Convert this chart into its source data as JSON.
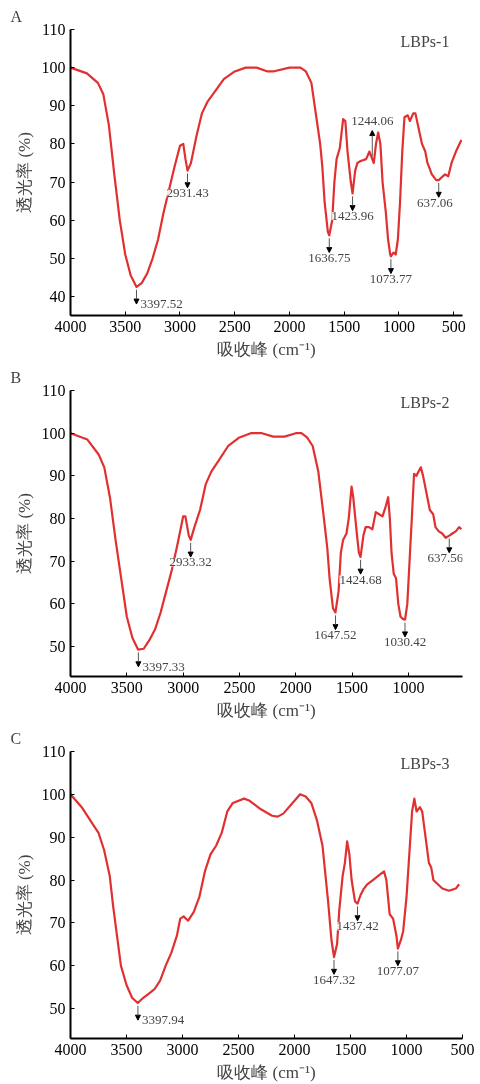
{
  "chart_data": [
    {
      "type": "line",
      "title": "A",
      "xlabel": "吸收峰 (cm⁻¹)",
      "ylabel": "透光率 (%)",
      "xlim": [
        4000,
        420
      ],
      "xticks": [
        4000,
        3500,
        3000,
        2500,
        2000,
        1500,
        1000,
        500
      ],
      "ylim": [
        35,
        110
      ],
      "yticks": [
        40,
        50,
        60,
        70,
        80,
        90,
        100,
        110
      ],
      "grid": false,
      "line_style": "solid",
      "marker": "none",
      "annotations": [
        "LBPs-1",
        {
          "text": "3397.52",
          "x": 3397.52,
          "y": 42.5
        },
        {
          "text": "2931.43",
          "x": 2931.43,
          "y": 73
        },
        {
          "text": "1636.75",
          "x": 1636.75,
          "y": 56
        },
        {
          "text": "1423.96",
          "x": 1423.96,
          "y": 67
        },
        {
          "text": "1244.06",
          "x": 1244.06,
          "y": 76
        },
        {
          "text": "1073.77",
          "x": 1073.77,
          "y": 50.5
        },
        {
          "text": "637.06",
          "x": 637.06,
          "y": 70.5
        }
      ],
      "series": [
        {
          "color": "#e03030",
          "x": [
            4000,
            3850,
            3750,
            3700,
            3650,
            3600,
            3550,
            3500,
            3450,
            3397,
            3350,
            3300,
            3250,
            3200,
            3150,
            3100,
            3050,
            3000,
            2970,
            2950,
            2931,
            2900,
            2850,
            2800,
            2750,
            2700,
            2600,
            2500,
            2400,
            2300,
            2200,
            2150,
            2000,
            1900,
            1850,
            1800,
            1750,
            1720,
            1700,
            1680,
            1650,
            1637,
            1610,
            1590,
            1570,
            1540,
            1510,
            1490,
            1470,
            1440,
            1424,
            1400,
            1380,
            1350,
            1300,
            1270,
            1244,
            1230,
            1210,
            1190,
            1170,
            1150,
            1120,
            1100,
            1080,
            1074,
            1050,
            1030,
            1010,
            990,
            970,
            950,
            920,
            900,
            870,
            850,
            820,
            790,
            760,
            740,
            700,
            660,
            637,
            600,
            580,
            550,
            520,
            480,
            430
          ],
          "values": [
            100,
            98.5,
            96,
            93,
            85,
            72,
            60,
            51,
            45.5,
            42.5,
            43.5,
            46,
            50,
            55,
            62,
            68,
            74,
            79.5,
            80,
            76,
            73,
            75,
            82,
            88,
            91,
            93,
            97,
            99,
            100,
            100,
            99,
            99,
            100,
            100,
            99,
            96,
            86,
            80,
            74,
            65,
            57,
            56,
            60,
            70,
            76,
            79,
            86.5,
            86,
            78,
            70,
            67,
            73,
            75,
            75.5,
            76,
            78,
            76,
            75,
            80,
            83,
            80,
            70,
            62,
            55,
            51,
            50.5,
            51.5,
            51,
            55,
            65,
            78,
            87,
            87.5,
            86,
            88,
            88,
            84,
            80,
            78,
            75,
            72,
            70.5,
            70.5,
            71.5,
            72,
            71.5,
            75,
            78,
            81
          ]
        }
      ]
    },
    {
      "type": "line",
      "title": "B",
      "xlabel": "吸收峰 (cm⁻¹)",
      "ylabel": "透光率 (%)",
      "xlim": [
        4000,
        520
      ],
      "xticks": [
        4000,
        3500,
        3000,
        2500,
        2000,
        1500,
        1000
      ],
      "ylim": [
        43,
        110
      ],
      "yticks": [
        50,
        60,
        70,
        80,
        90,
        100,
        110
      ],
      "grid": false,
      "line_style": "solid",
      "marker": "none",
      "annotations": [
        "LBPs-2",
        {
          "text": "3397.33",
          "x": 3397.33,
          "y": 49.3
        },
        {
          "text": "2933.32",
          "x": 2933.32,
          "y": 75
        },
        {
          "text": "1647.52",
          "x": 1647.52,
          "y": 58
        },
        {
          "text": "1424.68",
          "x": 1424.68,
          "y": 71
        },
        {
          "text": "1030.42",
          "x": 1030.42,
          "y": 56.3
        },
        {
          "text": "637.56",
          "x": 637.56,
          "y": 76
        }
      ],
      "series": [
        {
          "color": "#e03030",
          "x": [
            4000,
            3850,
            3750,
            3700,
            3650,
            3600,
            3550,
            3500,
            3450,
            3400,
            3350,
            3300,
            3250,
            3200,
            3150,
            3100,
            3050,
            3000,
            2980,
            2950,
            2933,
            2900,
            2850,
            2800,
            2750,
            2700,
            2600,
            2500,
            2400,
            2300,
            2200,
            2100,
            2000,
            1950,
            1900,
            1850,
            1800,
            1750,
            1720,
            1700,
            1670,
            1648,
            1620,
            1600,
            1580,
            1550,
            1530,
            1505,
            1490,
            1460,
            1440,
            1425,
            1400,
            1380,
            1350,
            1320,
            1290,
            1260,
            1230,
            1200,
            1180,
            1165,
            1150,
            1130,
            1110,
            1090,
            1070,
            1050,
            1030,
            1010,
            990,
            970,
            950,
            930,
            910,
            890,
            870,
            840,
            810,
            780,
            760,
            730,
            700,
            670,
            637,
            610,
            580,
            550,
            530
          ],
          "values": [
            100,
            98.5,
            95,
            92,
            85,
            75,
            66,
            57,
            52,
            49.3,
            49.5,
            51.5,
            54,
            58,
            63,
            68,
            74,
            80.5,
            80.5,
            76,
            75,
            78,
            82,
            88,
            91,
            93,
            97,
            99,
            100,
            100,
            99.2,
            99.2,
            100,
            100,
            99,
            97,
            91,
            80,
            73,
            66,
            59,
            58,
            63,
            72,
            75,
            76.5,
            80,
            87.5,
            85,
            77,
            72,
            71,
            76,
            78,
            78,
            77.5,
            81.5,
            81,
            80.5,
            83,
            85,
            80,
            72,
            67,
            66,
            60,
            57,
            56.5,
            56.3,
            60,
            70,
            80,
            90.5,
            90,
            91,
            92,
            90,
            86,
            82,
            81,
            78,
            77,
            76.5,
            75.5,
            76,
            76.5,
            77,
            78,
            77.5
          ]
        }
      ]
    },
    {
      "type": "line",
      "title": "C",
      "xlabel": "吸收峰 (cm⁻¹)",
      "ylabel": "透光率 (%)",
      "xlim": [
        4000,
        500
      ],
      "xticks": [
        4000,
        3500,
        3000,
        2500,
        2000,
        1500,
        1000,
        500
      ],
      "ylim": [
        43,
        110
      ],
      "yticks": [
        50,
        60,
        70,
        80,
        90,
        100,
        110
      ],
      "grid": false,
      "line_style": "solid",
      "marker": "none",
      "annotations": [
        "LBPs-3",
        {
          "text": "3397.94",
          "x": 3397.94,
          "y": 51.3
        },
        {
          "text": "1647.32",
          "x": 1647.32,
          "y": 62
        },
        {
          "text": "1437.42",
          "x": 1437.42,
          "y": 74.5
        },
        {
          "text": "1077.07",
          "x": 1077.07,
          "y": 64
        }
      ],
      "series": [
        {
          "color": "#e03030",
          "x": [
            4000,
            3900,
            3800,
            3750,
            3700,
            3650,
            3620,
            3580,
            3550,
            3500,
            3450,
            3400,
            3350,
            3300,
            3250,
            3200,
            3150,
            3100,
            3050,
            3020,
            2990,
            2950,
            2900,
            2850,
            2800,
            2750,
            2700,
            2650,
            2600,
            2550,
            2450,
            2400,
            2300,
            2200,
            2150,
            2100,
            2000,
            1950,
            1900,
            1850,
            1800,
            1750,
            1700,
            1670,
            1647,
            1620,
            1600,
            1570,
            1550,
            1530,
            1510,
            1490,
            1460,
            1437,
            1410,
            1380,
            1350,
            1300,
            1250,
            1200,
            1180,
            1150,
            1120,
            1090,
            1077,
            1050,
            1030,
            1000,
            970,
            950,
            930,
            910,
            880,
            860,
            830,
            800,
            780,
            760,
            720,
            680,
            620,
            560,
            530
          ],
          "values": [
            100,
            97,
            93,
            91,
            87,
            81,
            74,
            66,
            60,
            55.5,
            52.5,
            51.3,
            52.5,
            53.5,
            54.5,
            56.5,
            60,
            63,
            67,
            71,
            71.5,
            70.5,
            72.5,
            76,
            82,
            86,
            88,
            91,
            96,
            98,
            99,
            98.5,
            96.5,
            95,
            94.8,
            95.5,
            98.5,
            100,
            99.5,
            98,
            94,
            88,
            75,
            66,
            62,
            65,
            73,
            81,
            84,
            89,
            86,
            80,
            75,
            74.5,
            76.5,
            78,
            79,
            80,
            81,
            82,
            80,
            72,
            71,
            67,
            64,
            66,
            68,
            76,
            88,
            96,
            99,
            96,
            97,
            96,
            90,
            84,
            83,
            80,
            79,
            78,
            77.5,
            78,
            79
          ]
        }
      ]
    }
  ]
}
